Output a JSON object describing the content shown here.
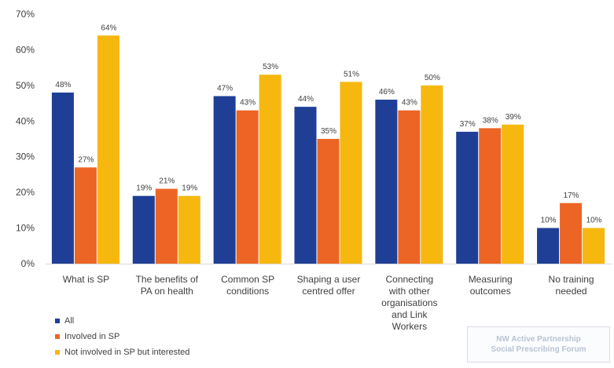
{
  "chart_data": {
    "type": "bar",
    "categories": [
      [
        "What is SP"
      ],
      [
        "The benefits of",
        "PA on health"
      ],
      [
        "Common SP",
        "conditions"
      ],
      [
        "Shaping a user",
        "centred offer"
      ],
      [
        "Connecting",
        "with other",
        "organisations",
        "and Link",
        "Workers"
      ],
      [
        "Measuring",
        "outcomes"
      ],
      [
        "No training",
        "needed"
      ]
    ],
    "series": [
      {
        "name": "All",
        "color": "#1f3f96",
        "values": [
          48,
          19,
          47,
          44,
          46,
          37,
          10
        ],
        "labels": [
          "48%",
          "19%",
          "47%",
          "44%",
          "46%",
          "37%",
          "10%"
        ]
      },
      {
        "name": "Involved in SP",
        "color": "#ec6525",
        "values": [
          27,
          21,
          43,
          35,
          43,
          38,
          17
        ],
        "labels": [
          "27%",
          "21%",
          "43%",
          "35%",
          "43%",
          "38%",
          "17%"
        ]
      },
      {
        "name": "Not involved in SP but interested",
        "color": "#f6b70f",
        "values": [
          64,
          19,
          53,
          51,
          50,
          39,
          10
        ],
        "labels": [
          "64%",
          "19%",
          "53%",
          "51%",
          "50%",
          "39%",
          "10%"
        ]
      }
    ],
    "yticks": [
      "0%",
      "10%",
      "20%",
      "30%",
      "40%",
      "50%",
      "60%",
      "70%"
    ],
    "ylim": [
      0,
      70
    ],
    "grid": false,
    "legend_position": "bottom-left"
  },
  "watermark": {
    "line1": "NW Active Partnership",
    "line2": "Social Prescribing Forum"
  }
}
